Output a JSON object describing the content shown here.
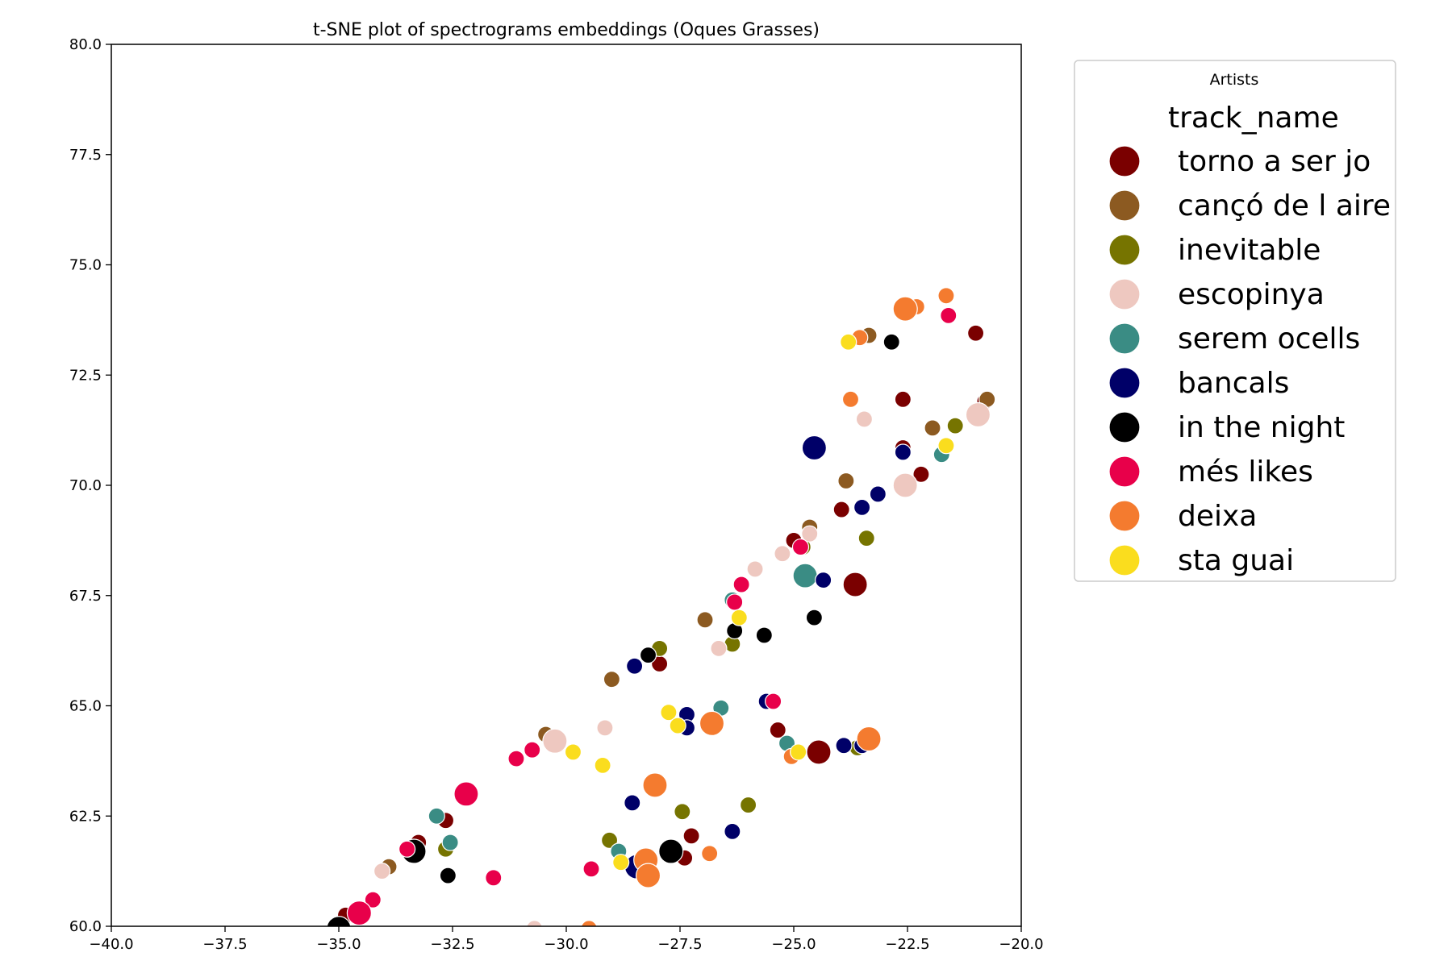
{
  "chart_data": {
    "type": "scatter",
    "title": "t-SNE plot of spectrograms embeddings (Oques Grasses)",
    "xlabel": "",
    "ylabel": "",
    "xlim": [
      -40.0,
      -20.0
    ],
    "ylim": [
      60.0,
      80.0
    ],
    "x_ticks": [
      "−40.0",
      "−37.5",
      "−35.0",
      "−32.5",
      "−30.0",
      "−27.5",
      "−25.0",
      "−22.5",
      "−20.0"
    ],
    "y_ticks": [
      "60.0",
      "62.5",
      "65.0",
      "67.5",
      "70.0",
      "72.5",
      "75.0",
      "77.5",
      "80.0"
    ],
    "grid": false,
    "legend": {
      "title": "Artists",
      "placement": "outside-right",
      "header": "track_name",
      "entries": [
        {
          "name": "torno a ser jo",
          "color": "#7a0000"
        },
        {
          "name": "cançó de l aire",
          "color": "#8c5a21"
        },
        {
          "name": "inevitable",
          "color": "#767400"
        },
        {
          "name": "escopinya",
          "color": "#eec8c0"
        },
        {
          "name": "serem ocells",
          "color": "#3a8c84"
        },
        {
          "name": "bancals",
          "color": "#000068"
        },
        {
          "name": "in the night",
          "color": "#000000"
        },
        {
          "name": "més likes",
          "color": "#e8004a"
        },
        {
          "name": "deixa",
          "color": "#f47b2f"
        },
        {
          "name": "sta guai",
          "color": "#fadd1e"
        }
      ]
    },
    "series": [
      {
        "name": "torno a ser jo",
        "color": "#7a0000",
        "points": [
          [
            -21.0,
            73.45,
            1
          ],
          [
            -22.6,
            71.95,
            1
          ],
          [
            -20.8,
            71.9,
            1
          ],
          [
            -22.2,
            70.25,
            1
          ],
          [
            -23.95,
            69.45,
            1
          ],
          [
            -25.0,
            68.75,
            1
          ],
          [
            -23.65,
            67.75,
            2
          ],
          [
            -27.95,
            65.95,
            1
          ],
          [
            -25.35,
            64.45,
            1
          ],
          [
            -24.45,
            63.95,
            2
          ],
          [
            -33.25,
            61.9,
            1
          ],
          [
            -32.65,
            62.4,
            1
          ],
          [
            -27.25,
            62.05,
            1
          ],
          [
            -27.4,
            61.55,
            1
          ],
          [
            -34.85,
            60.25,
            1
          ],
          [
            -22.6,
            70.85,
            1
          ]
        ]
      },
      {
        "name": "cançó de l aire",
        "color": "#8c5a21",
        "points": [
          [
            -23.35,
            73.4,
            1
          ],
          [
            -20.75,
            71.95,
            1
          ],
          [
            -21.95,
            71.3,
            1
          ],
          [
            -23.85,
            70.1,
            1
          ],
          [
            -24.65,
            69.05,
            1
          ],
          [
            -26.95,
            66.95,
            1
          ],
          [
            -29.0,
            65.6,
            1
          ],
          [
            -30.45,
            64.35,
            1
          ],
          [
            -33.9,
            61.35,
            1
          ]
        ]
      },
      {
        "name": "inevitable",
        "color": "#767400",
        "points": [
          [
            -21.45,
            71.35,
            1
          ],
          [
            -23.4,
            68.8,
            1
          ],
          [
            -24.8,
            68.6,
            1
          ],
          [
            -27.95,
            66.3,
            1
          ],
          [
            -26.35,
            66.4,
            1
          ],
          [
            -23.6,
            64.05,
            1
          ],
          [
            -27.45,
            62.6,
            1
          ],
          [
            -26.0,
            62.75,
            1
          ],
          [
            -29.05,
            61.95,
            1
          ],
          [
            -32.65,
            61.75,
            1
          ]
        ]
      },
      {
        "name": "escopinya",
        "color": "#eec8c0",
        "points": [
          [
            -20.95,
            71.6,
            2
          ],
          [
            -23.45,
            71.5,
            1
          ],
          [
            -22.55,
            70.0,
            2
          ],
          [
            -24.65,
            68.9,
            1
          ],
          [
            -25.25,
            68.45,
            1
          ],
          [
            -25.85,
            68.1,
            1
          ],
          [
            -26.65,
            66.3,
            1
          ],
          [
            -29.15,
            64.5,
            1
          ],
          [
            -30.25,
            64.2,
            2
          ],
          [
            -34.05,
            61.25,
            1
          ],
          [
            -30.7,
            59.95,
            1
          ]
        ]
      },
      {
        "name": "serem ocells",
        "color": "#3a8c84",
        "points": [
          [
            -21.75,
            70.7,
            1
          ],
          [
            -24.75,
            67.95,
            2
          ],
          [
            -26.35,
            67.4,
            1
          ],
          [
            -26.6,
            64.95,
            1
          ],
          [
            -25.15,
            64.15,
            1
          ],
          [
            -32.85,
            62.5,
            1
          ],
          [
            -32.55,
            61.9,
            1
          ],
          [
            -28.85,
            61.7,
            1
          ],
          [
            -35.0,
            59.95,
            1
          ]
        ]
      },
      {
        "name": "bancals",
        "color": "#000068",
        "points": [
          [
            -24.55,
            70.85,
            2
          ],
          [
            -22.6,
            70.75,
            1
          ],
          [
            -23.15,
            69.8,
            1
          ],
          [
            -23.5,
            69.5,
            1
          ],
          [
            -24.35,
            67.85,
            1
          ],
          [
            -28.5,
            65.9,
            1
          ],
          [
            -25.6,
            65.1,
            1
          ],
          [
            -27.35,
            64.8,
            1
          ],
          [
            -27.35,
            64.5,
            1
          ],
          [
            -23.9,
            64.1,
            1
          ],
          [
            -23.5,
            64.1,
            1
          ],
          [
            -28.55,
            62.8,
            1
          ],
          [
            -26.35,
            62.15,
            1
          ],
          [
            -28.45,
            61.35,
            2
          ]
        ]
      },
      {
        "name": "in the night",
        "color": "#000000",
        "points": [
          [
            -22.85,
            73.25,
            1
          ],
          [
            -24.55,
            67.0,
            1
          ],
          [
            -25.65,
            66.6,
            1
          ],
          [
            -26.3,
            66.7,
            1
          ],
          [
            -28.2,
            66.15,
            1
          ],
          [
            -27.7,
            61.7,
            2
          ],
          [
            -33.35,
            61.7,
            2
          ],
          [
            -32.6,
            61.15,
            1
          ],
          [
            -35.0,
            59.95,
            2
          ]
        ]
      },
      {
        "name": "més likes",
        "color": "#e8004a",
        "points": [
          [
            -21.6,
            73.85,
            1
          ],
          [
            -24.85,
            68.6,
            1
          ],
          [
            -26.15,
            67.75,
            1
          ],
          [
            -26.3,
            67.35,
            1
          ],
          [
            -25.45,
            65.1,
            1
          ],
          [
            -30.75,
            64.0,
            1
          ],
          [
            -31.1,
            63.8,
            1
          ],
          [
            -32.2,
            63.0,
            2
          ],
          [
            -29.45,
            61.3,
            1
          ],
          [
            -31.6,
            61.1,
            1
          ],
          [
            -34.25,
            60.6,
            1
          ],
          [
            -34.55,
            60.3,
            2
          ],
          [
            -33.5,
            61.75,
            1
          ]
        ]
      },
      {
        "name": "deixa",
        "color": "#f47b2f",
        "points": [
          [
            -21.65,
            74.3,
            1
          ],
          [
            -22.3,
            74.05,
            1
          ],
          [
            -22.55,
            74.0,
            2
          ],
          [
            -23.55,
            73.35,
            1
          ],
          [
            -23.75,
            71.95,
            1
          ],
          [
            -26.8,
            64.6,
            2
          ],
          [
            -23.35,
            64.25,
            2
          ],
          [
            -25.05,
            63.85,
            1
          ],
          [
            -28.05,
            63.2,
            2
          ],
          [
            -28.25,
            61.5,
            2
          ],
          [
            -26.85,
            61.65,
            1
          ],
          [
            -28.2,
            61.15,
            2
          ],
          [
            -29.5,
            59.95,
            1
          ]
        ]
      },
      {
        "name": "sta guai",
        "color": "#fadd1e",
        "points": [
          [
            -23.8,
            73.25,
            1
          ],
          [
            -21.65,
            70.9,
            1
          ],
          [
            -26.2,
            67.0,
            1
          ],
          [
            -27.75,
            64.85,
            1
          ],
          [
            -27.55,
            64.55,
            1
          ],
          [
            -24.9,
            63.95,
            1
          ],
          [
            -29.85,
            63.95,
            1
          ],
          [
            -29.2,
            63.65,
            1
          ],
          [
            -28.8,
            61.45,
            1
          ]
        ]
      }
    ]
  }
}
